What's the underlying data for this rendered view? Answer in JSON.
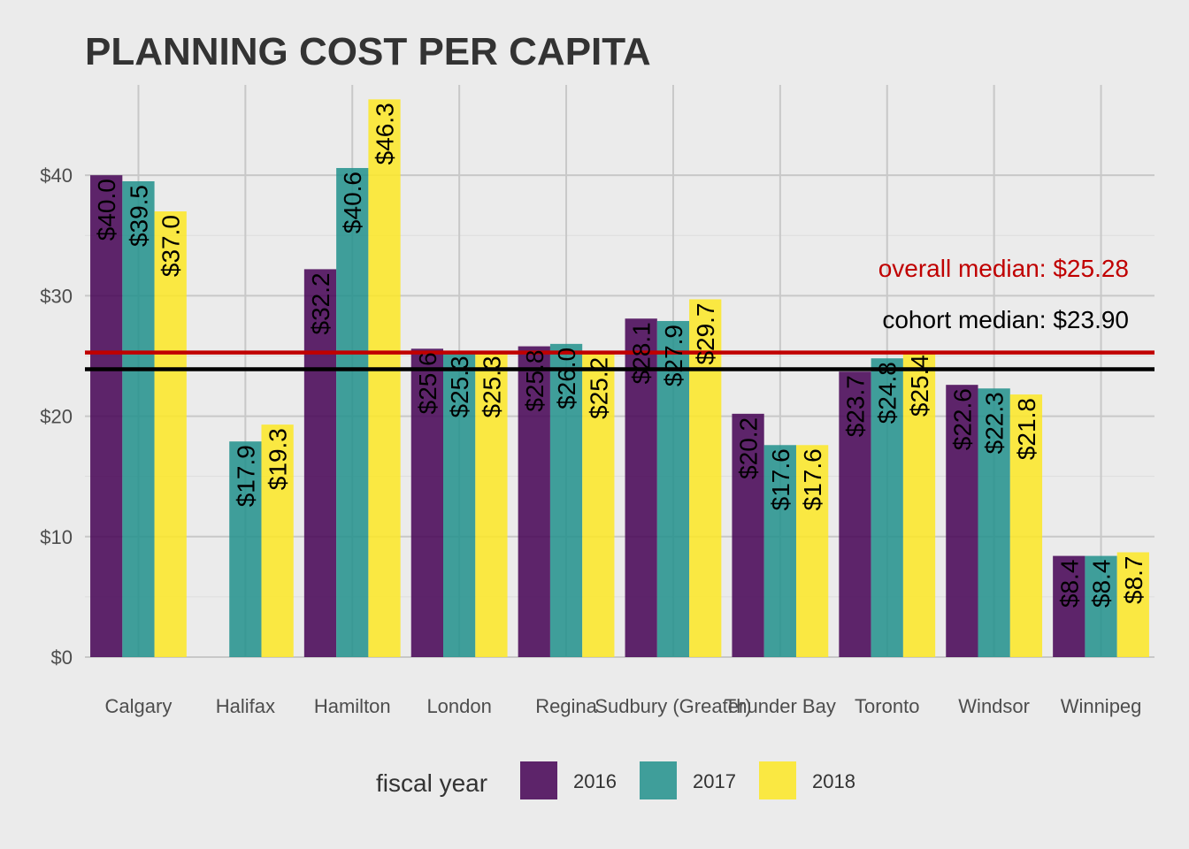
{
  "chart_data": {
    "type": "bar",
    "title": "PLANNING COST PER CAPITA",
    "xlabel": "",
    "ylabel": "",
    "ylim": [
      0,
      47.5
    ],
    "yticks": [
      {
        "value": 0,
        "label": "$0"
      },
      {
        "value": 10,
        "label": "$10"
      },
      {
        "value": 20,
        "label": "$20"
      },
      {
        "value": 30,
        "label": "$30"
      },
      {
        "value": 40,
        "label": "$40"
      }
    ],
    "grid": true,
    "categories": [
      "Calgary",
      "Halifax",
      "Hamilton",
      "London",
      "Regina",
      "Sudbury (Greater)",
      "Thunder Bay",
      "Toronto",
      "Windsor",
      "Winnipeg"
    ],
    "legend": {
      "title": "fiscal year",
      "position": "bottom"
    },
    "series": [
      {
        "name": "2016",
        "color": "#440154",
        "values": [
          40.0,
          null,
          32.2,
          25.6,
          25.8,
          28.1,
          20.2,
          23.7,
          22.6,
          8.4
        ],
        "labels": [
          "$40.0",
          null,
          "$32.2",
          "$25.6",
          "$25.8",
          "$28.1",
          "$20.2",
          "$23.7",
          "$22.6",
          "$8.4"
        ]
      },
      {
        "name": "2017",
        "color": "#21908c",
        "values": [
          39.5,
          17.9,
          40.6,
          25.3,
          26.0,
          27.9,
          17.6,
          24.8,
          22.3,
          8.4
        ],
        "labels": [
          "$39.5",
          "$17.9",
          "$40.6",
          "$25.3",
          "$26.0",
          "$27.9",
          "$17.6",
          "$24.8",
          "$22.3",
          "$8.4"
        ]
      },
      {
        "name": "2018",
        "color": "#fde725",
        "values": [
          37.0,
          19.3,
          46.3,
          25.3,
          25.2,
          29.7,
          17.6,
          25.4,
          21.8,
          8.7
        ],
        "labels": [
          "$37.0",
          "$19.3",
          "$46.3",
          "$25.3",
          "$25.2",
          "$29.7",
          "$17.6",
          "$25.4",
          "$21.8",
          "$8.7"
        ]
      }
    ],
    "reference_lines": [
      {
        "name": "overall-median",
        "value": 25.28,
        "label": "overall median: $25.28",
        "color": "#c00000"
      },
      {
        "name": "cohort-median",
        "value": 23.9,
        "label": "cohort median: $23.90",
        "color": "#000000"
      }
    ]
  }
}
